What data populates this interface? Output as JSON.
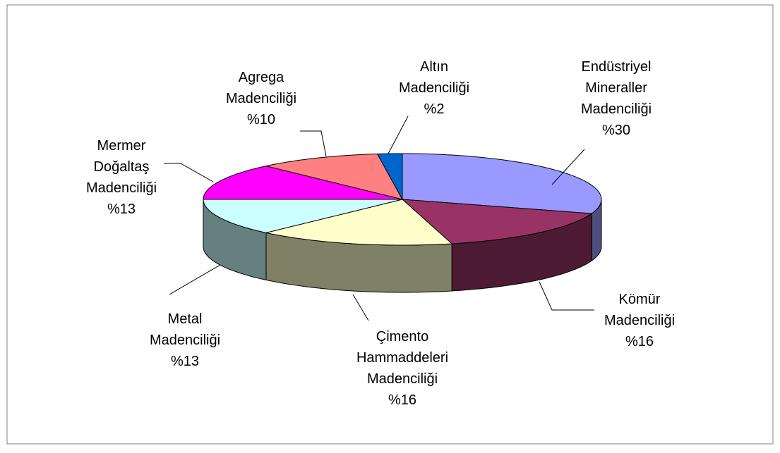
{
  "chart_data": {
    "type": "pie3d",
    "categories": [
      "Endüstriyel Mineraller Madenciliği",
      "Kömür Madenciliği",
      "Çimento Hammaddeleri Madenciliği",
      "Metal Madenciliği",
      "Mermer Doğaltaş Madenciliği",
      "Agrega Madenciliği",
      "Altın Madenciliği"
    ],
    "values": [
      30,
      16,
      16,
      13,
      13,
      10,
      2
    ],
    "value_labels": [
      "%30",
      "%16",
      "%16",
      "%13",
      "%13",
      "%10",
      "%2"
    ],
    "colors": [
      "#9999ff",
      "#993366",
      "#ffffcc",
      "#ccffff",
      "#ff00ff",
      "#ff8080",
      "#0066cc"
    ]
  }
}
